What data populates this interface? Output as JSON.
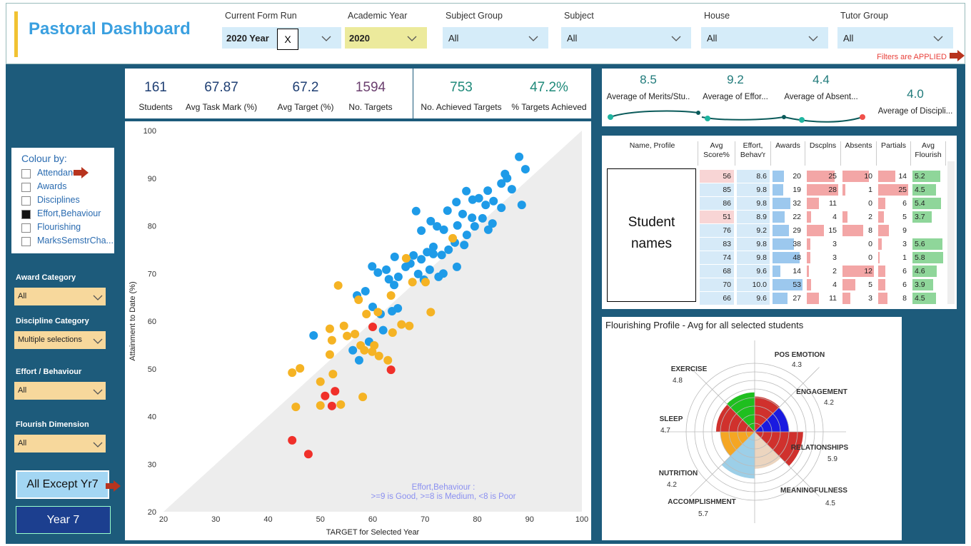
{
  "header": {
    "title": "Pastoral Dashboard",
    "status": "Filters are APPLIED"
  },
  "filters": [
    {
      "label": "Current Form Run",
      "value": "2020 Year",
      "clear": "X"
    },
    {
      "label": "Academic Year",
      "value": "2020"
    },
    {
      "label": "Subject Group",
      "value": "All"
    },
    {
      "label": "Subject",
      "value": "All"
    },
    {
      "label": "House",
      "value": "All"
    },
    {
      "label": "Tutor Group",
      "value": "All"
    }
  ],
  "colour_by": {
    "title": "Colour by:",
    "options": [
      {
        "label": "Attendance",
        "checked": false
      },
      {
        "label": "Awards",
        "checked": false
      },
      {
        "label": "Disciplines",
        "checked": false
      },
      {
        "label": "Effort,Behaviour",
        "checked": true
      },
      {
        "label": "Flourishing",
        "checked": false
      },
      {
        "label": "MarksSemstrCha...",
        "checked": false
      }
    ]
  },
  "slicers": [
    {
      "label": "Award Category",
      "value": "All"
    },
    {
      "label": "Discipline Category",
      "value": "Multiple selections"
    },
    {
      "label": "Effort / Behaviour",
      "value": "All"
    },
    {
      "label": "Flourish Dimension",
      "value": "All"
    }
  ],
  "buttons": [
    "All Except Yr7",
    "Year 7"
  ],
  "kpis": [
    {
      "value": "161",
      "label": "Students"
    },
    {
      "value": "67.87",
      "label": "Avg Task Mark (%)"
    },
    {
      "value": "67.2",
      "label": "Avg Target (%)"
    },
    {
      "value": "1594",
      "label": "No. Targets"
    },
    {
      "value": "753",
      "label": "No. Achieved Targets"
    },
    {
      "value": "47.2%",
      "label": "% Targets Achieved"
    }
  ],
  "averages": [
    {
      "value": "8.5",
      "label": "Average of Merits/Stu.."
    },
    {
      "value": "9.2",
      "label": "Average of Effor..."
    },
    {
      "value": "4.4",
      "label": "Average of Absent..."
    },
    {
      "value": "4.0",
      "label": "Average of Discipli..."
    }
  ],
  "scatter": {
    "type": "scatter",
    "xlabel": "TARGET for Selected Year",
    "ylabel": "Attainment to Date (%)",
    "annotation": [
      "Effort,Behaviour :",
      ">=9 is Good, >=8 is Medium, <8 is Poor"
    ],
    "xlim": [
      20,
      100
    ],
    "ylim": [
      20,
      100
    ],
    "xticks": [
      20,
      30,
      40,
      50,
      60,
      70,
      80,
      90,
      100
    ],
    "yticks": [
      20,
      30,
      40,
      50,
      60,
      70,
      80,
      90,
      100
    ],
    "series": [
      {
        "color": "#1e9be8",
        "x": [
          48.7,
          56.2,
          57.4,
          59.3,
          62.0,
          61.5,
          63.7,
          64.8,
          60.0,
          57.0,
          58.6,
          61.0,
          59.9,
          62.6,
          63.1,
          64.1,
          64.9,
          66.3,
          67.2,
          68.7,
          69.8,
          70.9,
          72.6,
          73.5,
          76.1,
          64.2,
          67.8,
          69.3,
          70.4,
          71.6,
          73.2,
          74.5,
          75.7,
          77.5,
          78.0,
          76.2,
          73.6,
          72.3,
          69.3,
          68.3,
          71.1,
          74.3,
          76.0,
          77.2,
          79.0,
          81.0,
          82.1,
          82.9,
          84.6,
          83.1,
          81.6,
          80.3,
          79.1,
          77.9,
          82.0,
          84.6,
          85.7,
          86.6,
          85.3,
          88.0,
          89.2,
          88.5,
          71.6,
          79.5
        ],
        "y": [
          57.0,
          53.9,
          51.8,
          55.7,
          58.1,
          61.5,
          62.1,
          62.7,
          63.0,
          65.4,
          66.3,
          70.2,
          71.5,
          70.8,
          68.8,
          67.6,
          69.3,
          71.4,
          72.1,
          69.9,
          68.7,
          70.8,
          69.3,
          70.0,
          71.4,
          73.5,
          73.8,
          73.0,
          74.5,
          75.6,
          73.9,
          75.0,
          76.5,
          76.0,
          78.1,
          80.1,
          79.2,
          79.9,
          79.0,
          83.1,
          81.0,
          83.2,
          85.0,
          82.5,
          81.7,
          81.6,
          79.2,
          80.5,
          83.8,
          85.2,
          84.4,
          85.8,
          85.5,
          87.3,
          87.4,
          88.9,
          90.0,
          87.7,
          90.9,
          94.5,
          91.9,
          84.4,
          74.1,
          79.9
        ]
      },
      {
        "color": "#f5b324",
        "x": [
          44.6,
          46.1,
          45.3,
          50.0,
          53.9,
          58.1,
          50.0,
          52.4,
          51.8,
          52.2,
          51.8,
          54.5,
          55.1,
          57.7,
          58.4,
          59.9,
          61.2,
          62.9,
          60.3,
          56.6,
          58.8,
          61.0,
          63.8,
          65.5,
          67.0,
          57.3,
          53.4,
          63.5,
          67.6,
          66.4,
          71.1,
          70.1,
          75.3
        ],
        "y": [
          49.2,
          50.1,
          42.0,
          42.3,
          42.5,
          44.1,
          47.3,
          48.9,
          53.0,
          56.0,
          58.4,
          59.0,
          56.9,
          54.9,
          53.9,
          53.6,
          52.7,
          51.8,
          54.9,
          57.3,
          61.5,
          61.9,
          57.6,
          59.3,
          59.0,
          64.5,
          67.5,
          65.4,
          68.2,
          73.2,
          61.9,
          68.2,
          77.4
        ]
      },
      {
        "color": "#f0302a",
        "x": [
          44.6,
          47.7,
          50.9,
          52.8,
          52.2,
          63.5,
          60.0
        ],
        "y": [
          35.0,
          32.1,
          44.3,
          45.3,
          42.2,
          49.8,
          58.8
        ]
      }
    ]
  },
  "table": {
    "headers": [
      "Name, Profile",
      "Avg Score%",
      "Effort, Behav'r",
      "Awards",
      "Dscplns",
      "Absents",
      "Partials",
      "Avg Flourish"
    ],
    "placeholder": "Student names",
    "rows": [
      [
        "56",
        "8.6",
        "20",
        "25",
        "10",
        "14",
        "5.2"
      ],
      [
        "85",
        "9.8",
        "19",
        "28",
        "1",
        "25",
        "4.5"
      ],
      [
        "86",
        "9.8",
        "32",
        "11",
        "0",
        "6",
        "5.4"
      ],
      [
        "51",
        "8.9",
        "22",
        "4",
        "2",
        "5",
        "3.7"
      ],
      [
        "76",
        "9.2",
        "29",
        "15",
        "8",
        "9",
        null
      ],
      [
        "83",
        "9.8",
        "38",
        "3",
        "0",
        "3",
        "5.6"
      ],
      [
        "74",
        "9.8",
        "48",
        "3",
        "0",
        "1",
        "5.8"
      ],
      [
        "68",
        "9.6",
        "14",
        "2",
        "12",
        "6",
        "4.6"
      ],
      [
        "70",
        "10.0",
        "53",
        "4",
        "5",
        "6",
        "3.9"
      ],
      [
        "66",
        "9.6",
        "27",
        "11",
        "3",
        "8",
        "4.5"
      ]
    ]
  },
  "flourishing": {
    "type": "polar",
    "title": "Flourishing Profile - Avg for all selected students",
    "categories": [
      "POS EMOTION",
      "ENGAGEMENT",
      "RELATIONSHIPS",
      "MEANINGFULNESS",
      "ACCOMPLISHMENT",
      "NUTRITION",
      "SLEEP",
      "EXERCISE"
    ],
    "values": [
      4.3,
      4.2,
      5.9,
      4.5,
      5.7,
      4.2,
      4.7,
      4.8
    ],
    "colors": [
      "#d0312d",
      "#1a1ae0",
      "#d0312d",
      "#ecd5bf",
      "#9ccfe8",
      "#f5a623",
      "#d0312d",
      "#1fbf1f"
    ]
  }
}
